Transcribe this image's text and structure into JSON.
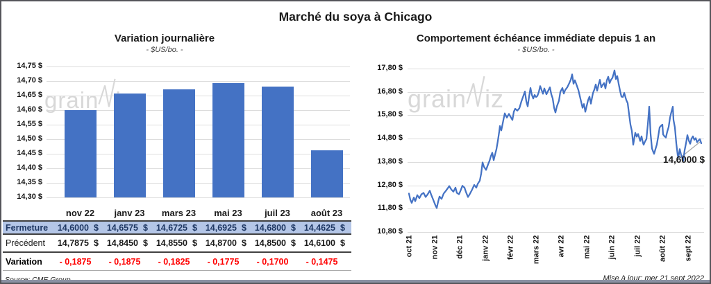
{
  "title": "Marché du soya à Chicago",
  "watermark": {
    "part1": "grain",
    "part2": "iz"
  },
  "footer": {
    "source": "Source: CME Group",
    "updated": "Mise à jour: mer 21 sept 2022"
  },
  "colors": {
    "accent": "#4472C4",
    "grid": "#DCDCDC",
    "table_highlight": "#B4C6E7",
    "fermeture_text": "#1F3864",
    "negative": "#FF0000",
    "watermark": "#D8D8D8",
    "leader_line": "#A8A8A8"
  },
  "table": {
    "rows": [
      {
        "label": "Fermeture",
        "values": [
          "14,6000",
          "14,6575",
          "14,6725",
          "14,6925",
          "14,6800",
          "14,4625"
        ],
        "currency": "$"
      },
      {
        "label": "Précédent",
        "values": [
          "14,7875",
          "14,8450",
          "14,8550",
          "14,8700",
          "14,8500",
          "14,6100"
        ],
        "currency": "$"
      },
      {
        "label": "Variation",
        "values": [
          "- 0,1875",
          "- 0,1875",
          "- 0,1825",
          "- 0,1775",
          "- 0,1700",
          "- 0,1475"
        ],
        "currency": ""
      }
    ]
  },
  "chart_data": [
    {
      "type": "bar",
      "title": "Variation  journalière",
      "subtitle": "- $US/bo. -",
      "categories": [
        "nov 22",
        "janv 23",
        "mars 23",
        "mai 23",
        "juil 23",
        "août 23"
      ],
      "values": [
        14.6,
        14.6575,
        14.6725,
        14.6925,
        14.68,
        14.4625
      ],
      "ylim": [
        14.3,
        14.75
      ],
      "ytick_step": 0.05,
      "ytick_labels": [
        "14,30 $",
        "14,35 $",
        "14,40 $",
        "14,45 $",
        "14,50 $",
        "14,55 $",
        "14,60 $",
        "14,65 $",
        "14,70 $",
        "14,75 $"
      ],
      "grid": true,
      "legend": "none"
    },
    {
      "type": "line",
      "title": "Comportement  échéance  immédiate  depuis 1 an",
      "subtitle": "- $US/bo. -",
      "x_tick_labels": [
        "oct 21",
        "nov 21",
        "déc 21",
        "janv 22",
        "févr 22",
        "mars 22",
        "avr 22",
        "mai 22",
        "juin 22",
        "juil 22",
        "août 22",
        "sept 22"
      ],
      "ylim": [
        10.8,
        17.8
      ],
      "ytick_labels": [
        "10,80 $",
        "11,80 $",
        "12,80 $",
        "13,80 $",
        "14,80 $",
        "15,80 $",
        "16,80 $",
        "17,80 $"
      ],
      "last_value_label": "14,6000 $",
      "grid": true,
      "legend": "none",
      "series": [
        {
          "name": "échéance immédiate",
          "points": [
            [
              587,
              12.45
            ],
            [
              589,
              12.18
            ],
            [
              591,
              12.05
            ],
            [
              594,
              12.28
            ],
            [
              596,
              12.12
            ],
            [
              599,
              12.38
            ],
            [
              602,
              12.25
            ],
            [
              605,
              12.42
            ],
            [
              608,
              12.48
            ],
            [
              611,
              12.3
            ],
            [
              614,
              12.42
            ],
            [
              617,
              12.57
            ],
            [
              619,
              12.4
            ],
            [
              622,
              12.18
            ],
            [
              625,
              11.95
            ],
            [
              627,
              11.83
            ],
            [
              629,
              12.1
            ],
            [
              631,
              12.32
            ],
            [
              634,
              12.22
            ],
            [
              637,
              12.45
            ],
            [
              640,
              12.56
            ],
            [
              643,
              12.68
            ],
            [
              645,
              12.77
            ],
            [
              648,
              12.62
            ],
            [
              651,
              12.53
            ],
            [
              654,
              12.7
            ],
            [
              656,
              12.48
            ],
            [
              659,
              12.42
            ],
            [
              661,
              12.55
            ],
            [
              664,
              12.78
            ],
            [
              667,
              12.7
            ],
            [
              669,
              12.52
            ],
            [
              672,
              12.3
            ],
            [
              675,
              12.45
            ],
            [
              678,
              12.62
            ],
            [
              681,
              12.82
            ],
            [
              684,
              12.7
            ],
            [
              686,
              12.86
            ],
            [
              689,
              13.0
            ],
            [
              691,
              13.3
            ],
            [
              693,
              13.78
            ],
            [
              695,
              13.6
            ],
            [
              698,
              13.46
            ],
            [
              701,
              13.7
            ],
            [
              703,
              13.85
            ],
            [
              705,
              14.05
            ],
            [
              707,
              14.2
            ],
            [
              709,
              13.88
            ],
            [
              711,
              14.12
            ],
            [
              713,
              14.35
            ],
            [
              715,
              14.7
            ],
            [
              717,
              15.1
            ],
            [
              718,
              15.34
            ],
            [
              720,
              15.15
            ],
            [
              723,
              15.6
            ],
            [
              725,
              15.88
            ],
            [
              728,
              15.7
            ],
            [
              731,
              15.86
            ],
            [
              734,
              15.7
            ],
            [
              736,
              15.6
            ],
            [
              738,
              15.95
            ],
            [
              740,
              16.08
            ],
            [
              743,
              16.0
            ],
            [
              746,
              16.1
            ],
            [
              749,
              16.4
            ],
            [
              752,
              16.65
            ],
            [
              754,
              16.82
            ],
            [
              756,
              16.4
            ],
            [
              758,
              16.18
            ],
            [
              760,
              16.6
            ],
            [
              762,
              16.97
            ],
            [
              764,
              16.68
            ],
            [
              766,
              16.52
            ],
            [
              768,
              16.67
            ],
            [
              770,
              16.58
            ],
            [
              772,
              16.63
            ],
            [
              774,
              16.8
            ],
            [
              776,
              17.05
            ],
            [
              778,
              16.88
            ],
            [
              780,
              16.72
            ],
            [
              782,
              16.95
            ],
            [
              785,
              16.7
            ],
            [
              788,
              16.88
            ],
            [
              790,
              17.0
            ],
            [
              792,
              16.7
            ],
            [
              794,
              16.52
            ],
            [
              796,
              16.12
            ],
            [
              798,
              15.92
            ],
            [
              800,
              16.18
            ],
            [
              803,
              16.42
            ],
            [
              805,
              16.8
            ],
            [
              808,
              16.97
            ],
            [
              810,
              16.73
            ],
            [
              812,
              16.88
            ],
            [
              815,
              17.0
            ],
            [
              817,
              17.12
            ],
            [
              820,
              17.32
            ],
            [
              822,
              17.55
            ],
            [
              824,
              17.15
            ],
            [
              826,
              17.3
            ],
            [
              829,
              17.05
            ],
            [
              831,
              16.88
            ],
            [
              834,
              16.5
            ],
            [
              837,
              16.12
            ],
            [
              839,
              16.28
            ],
            [
              841,
              15.95
            ],
            [
              843,
              16.2
            ],
            [
              845,
              16.45
            ],
            [
              847,
              16.6
            ],
            [
              849,
              16.3
            ],
            [
              852,
              16.75
            ],
            [
              854,
              16.9
            ],
            [
              856,
              17.12
            ],
            [
              858,
              16.85
            ],
            [
              860,
              17.1
            ],
            [
              862,
              17.32
            ],
            [
              864,
              17.0
            ],
            [
              866,
              17.1
            ],
            [
              868,
              17.18
            ],
            [
              870,
              16.95
            ],
            [
              872,
              17.3
            ],
            [
              874,
              17.45
            ],
            [
              876,
              17.18
            ],
            [
              878,
              17.32
            ],
            [
              880,
              17.4
            ],
            [
              882,
              17.6
            ],
            [
              883,
              17.72
            ],
            [
              885,
              17.35
            ],
            [
              887,
              17.48
            ],
            [
              889,
              17.15
            ],
            [
              891,
              16.85
            ],
            [
              893,
              16.6
            ],
            [
              895,
              16.58
            ],
            [
              897,
              16.76
            ],
            [
              900,
              16.45
            ],
            [
              902,
              16.32
            ],
            [
              904,
              15.85
            ],
            [
              906,
              15.4
            ],
            [
              908,
              15.13
            ],
            [
              910,
              14.54
            ],
            [
              912,
              14.9
            ],
            [
              913,
              15.05
            ],
            [
              915,
              14.88
            ],
            [
              917,
              15.0
            ],
            [
              919,
              14.8
            ],
            [
              920,
              14.7
            ],
            [
              922,
              14.9
            ],
            [
              924,
              14.62
            ],
            [
              925,
              14.54
            ],
            [
              927,
              14.68
            ],
            [
              929,
              14.78
            ],
            [
              931,
              15.4
            ],
            [
              933,
              16.17
            ],
            [
              935,
              15.0
            ],
            [
              937,
              14.38
            ],
            [
              939,
              14.22
            ],
            [
              940,
              14.15
            ],
            [
              942,
              14.35
            ],
            [
              944,
              14.55
            ],
            [
              946,
              14.9
            ],
            [
              948,
              15.28
            ],
            [
              950,
              15.35
            ],
            [
              952,
              15.4
            ],
            [
              953,
              14.98
            ],
            [
              955,
              14.9
            ],
            [
              957,
              14.85
            ],
            [
              959,
              15.1
            ],
            [
              961,
              15.3
            ],
            [
              963,
              15.7
            ],
            [
              965,
              15.95
            ],
            [
              967,
              16.17
            ],
            [
              968,
              15.6
            ],
            [
              970,
              15.28
            ],
            [
              972,
              14.6
            ],
            [
              974,
              14.1
            ],
            [
              975,
              14.0
            ],
            [
              977,
              14.35
            ],
            [
              979,
              14.1
            ],
            [
              981,
              13.95
            ],
            [
              982,
              13.85
            ],
            [
              984,
              14.3
            ],
            [
              986,
              14.6
            ],
            [
              988,
              14.95
            ],
            [
              990,
              14.72
            ],
            [
              992,
              14.58
            ],
            [
              994,
              14.8
            ],
            [
              996,
              14.9
            ],
            [
              998,
              14.75
            ],
            [
              1000,
              14.82
            ],
            [
              1002,
              14.65
            ],
            [
              1004,
              14.72
            ],
            [
              1006,
              14.78
            ],
            [
              1008,
              14.6
            ]
          ]
        }
      ]
    }
  ]
}
